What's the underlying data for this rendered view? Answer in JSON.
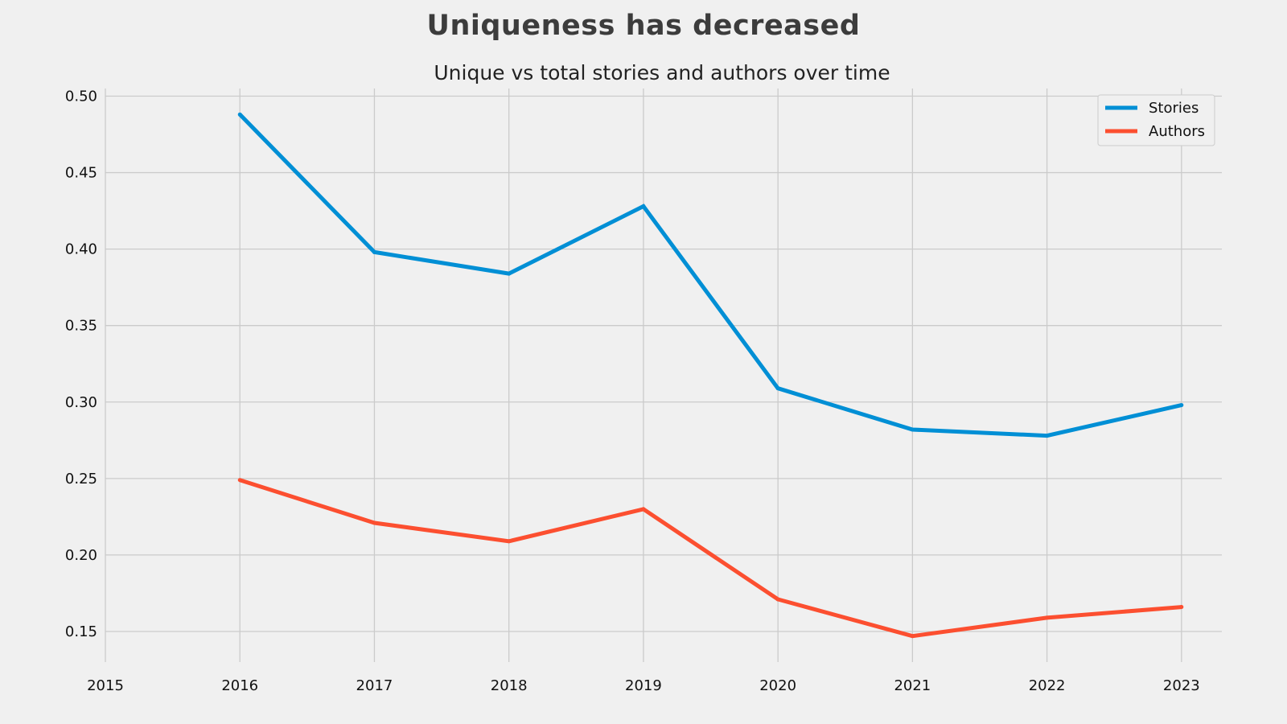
{
  "figure": {
    "title": "Uniqueness has decreased"
  },
  "chart_data": {
    "type": "line",
    "title": "Unique vs total stories and authors over time",
    "xlabel": "",
    "ylabel": "",
    "x": [
      2016,
      2017,
      2018,
      2019,
      2020,
      2021,
      2022,
      2023
    ],
    "x_ticks": [
      "2015",
      "2016",
      "2017",
      "2018",
      "2019",
      "2020",
      "2021",
      "2022",
      "2023"
    ],
    "y_ticks": [
      "0.15",
      "0.20",
      "0.25",
      "0.30",
      "0.35",
      "0.40",
      "0.45",
      "0.50"
    ],
    "xlim": [
      2015,
      2023.3
    ],
    "ylim": [
      0.13,
      0.505
    ],
    "grid": true,
    "legend_position": "top-right",
    "series": [
      {
        "name": "Stories",
        "color": "#008fd5",
        "values": [
          0.488,
          0.398,
          0.384,
          0.428,
          0.309,
          0.282,
          0.278,
          0.298
        ]
      },
      {
        "name": "Authors",
        "color": "#fc4f30",
        "values": [
          0.249,
          0.221,
          0.209,
          0.23,
          0.171,
          0.147,
          0.159,
          0.166
        ]
      }
    ],
    "colors": {
      "background": "#f0f0f0",
      "grid": "#cbcbcb"
    }
  }
}
